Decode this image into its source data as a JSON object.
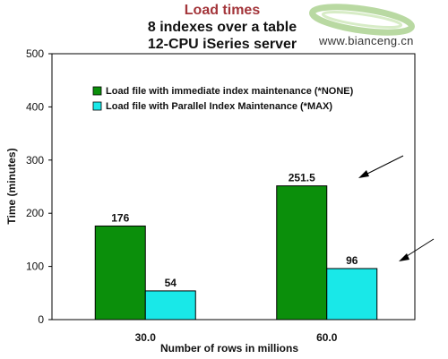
{
  "chart_data": {
    "type": "bar",
    "title": "Load times",
    "subtitle": [
      "8 indexes over a table",
      "12-CPU iSeries server"
    ],
    "xlabel": "Number of rows in millions",
    "ylabel": "Time (minutes)",
    "categories": [
      "30.0",
      "60.0"
    ],
    "ylim": [
      0,
      500
    ],
    "yticks": [
      0,
      100,
      200,
      300,
      400,
      500
    ],
    "grid": false,
    "legend_position": "top-left",
    "series": [
      {
        "name": "Load file with immediate index maintenance (*NONE)",
        "values": [
          176,
          251.5
        ],
        "labels": [
          "176",
          "251.5"
        ],
        "color": "#0b8f0b"
      },
      {
        "name": "Load file with Parallel Index Maintenance (*MAX)",
        "values": [
          54,
          96
        ],
        "labels": [
          "54",
          "96"
        ],
        "color": "#19e8e8"
      }
    ]
  },
  "watermark": "www.bianceng.cn"
}
